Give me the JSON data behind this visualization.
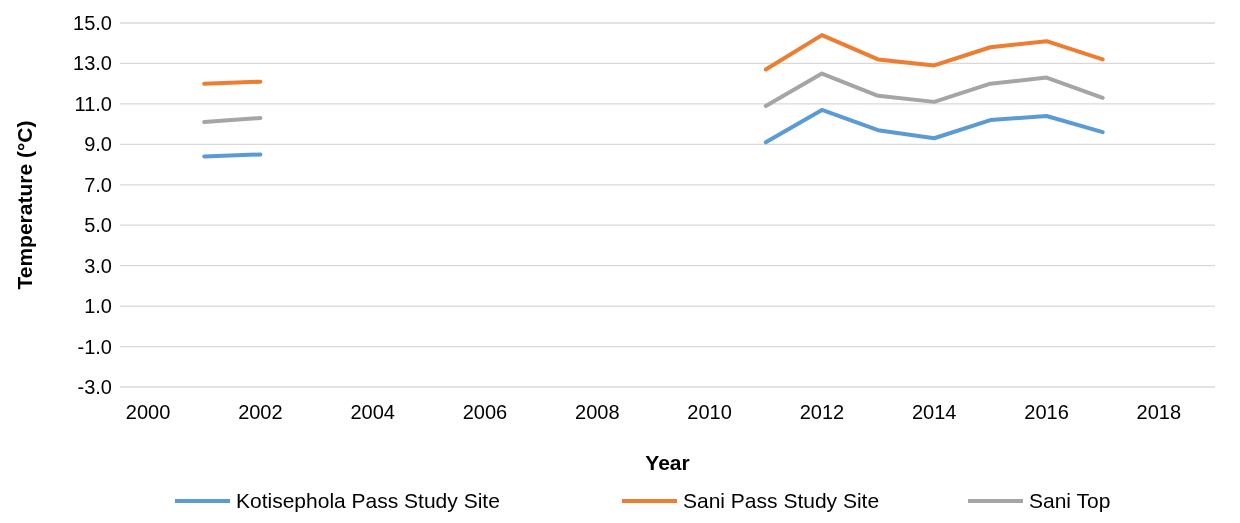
{
  "chart_data": {
    "type": "line",
    "xlabel": "Year",
    "ylabel": "Temperature (°C)",
    "x": [
      2001,
      2002,
      2003,
      2004,
      2005,
      2006,
      2007,
      2008,
      2009,
      2010,
      2011,
      2012,
      2013,
      2014,
      2015,
      2016,
      2017
    ],
    "series": [
      {
        "name": "Kotisephola Pass Study Site",
        "color": "#5b9bd5",
        "values": [
          8.4,
          8.5,
          null,
          null,
          null,
          null,
          null,
          null,
          null,
          null,
          9.1,
          10.7,
          9.7,
          9.3,
          10.2,
          10.4,
          9.6
        ]
      },
      {
        "name": "Sani Pass Study Site",
        "color": "#ed7d31",
        "values": [
          12.0,
          12.1,
          null,
          null,
          null,
          null,
          null,
          null,
          null,
          null,
          12.7,
          14.4,
          13.2,
          12.9,
          13.8,
          14.1,
          13.2
        ]
      },
      {
        "name": "Sani Top",
        "color": "#a5a5a5",
        "values": [
          10.1,
          10.3,
          null,
          null,
          null,
          null,
          null,
          null,
          null,
          null,
          10.9,
          12.5,
          11.4,
          11.1,
          12.0,
          12.3,
          11.3
        ]
      }
    ],
    "xlim": [
      1999.5,
      2019
    ],
    "xticks": [
      2000,
      2002,
      2004,
      2006,
      2008,
      2010,
      2012,
      2014,
      2016,
      2018
    ],
    "ylim": [
      -3,
      15
    ],
    "yticks": [
      {
        "value": -3,
        "label": "-3.0"
      },
      {
        "value": -1,
        "label": "-1.0"
      },
      {
        "value": 1,
        "label": "1.0"
      },
      {
        "value": 3,
        "label": "3.0"
      },
      {
        "value": 5,
        "label": "5.0"
      },
      {
        "value": 7,
        "label": "7.0"
      },
      {
        "value": 9,
        "label": "9.0"
      },
      {
        "value": 11,
        "label": "11.0"
      },
      {
        "value": 13,
        "label": "13.0"
      },
      {
        "value": 15,
        "label": "15.0"
      }
    ],
    "grid": "y",
    "legend": "bottom",
    "marker": "none",
    "line_style": "solid"
  }
}
